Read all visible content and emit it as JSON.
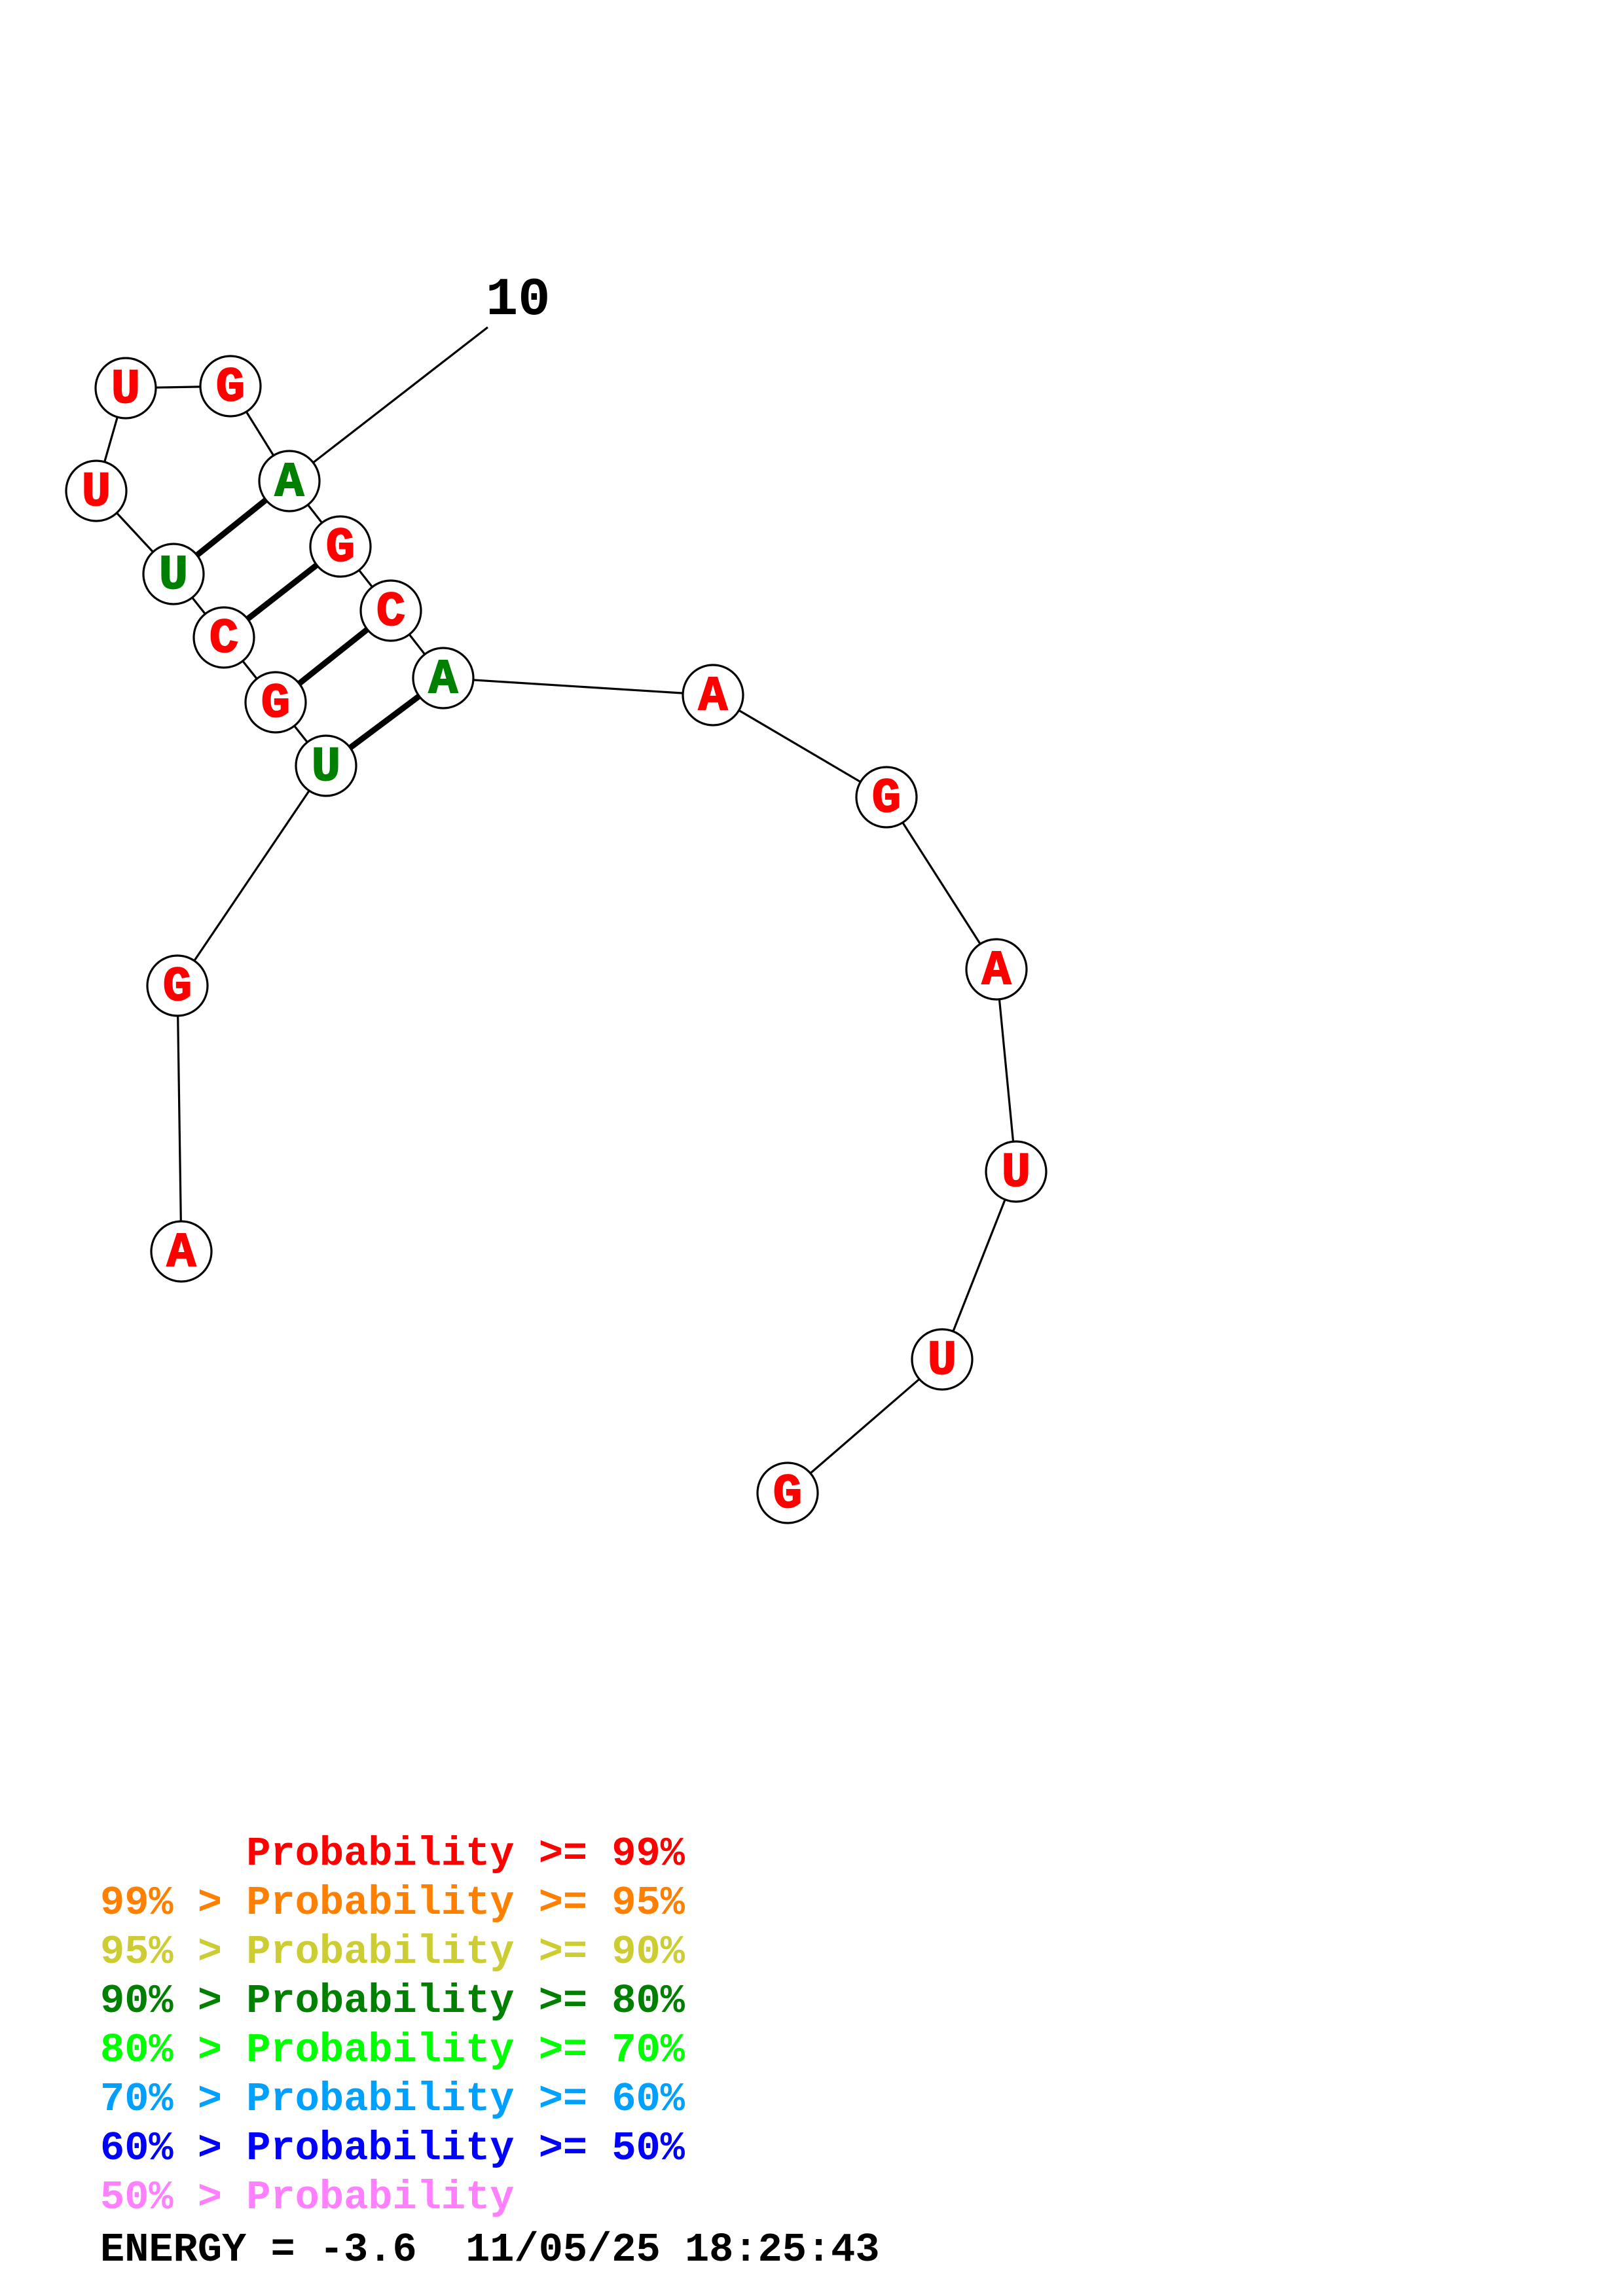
{
  "nucleotides": [
    {
      "index": 1,
      "base": "A",
      "color": "#ff0000"
    },
    {
      "index": 2,
      "base": "G",
      "color": "#ff0000"
    },
    {
      "index": 3,
      "base": "U",
      "color": "#008000"
    },
    {
      "index": 4,
      "base": "G",
      "color": "#ff0000"
    },
    {
      "index": 5,
      "base": "C",
      "color": "#ff0000"
    },
    {
      "index": 6,
      "base": "U",
      "color": "#008000"
    },
    {
      "index": 7,
      "base": "U",
      "color": "#ff0000"
    },
    {
      "index": 8,
      "base": "U",
      "color": "#ff0000"
    },
    {
      "index": 9,
      "base": "G",
      "color": "#ff0000"
    },
    {
      "index": 10,
      "base": "A",
      "color": "#008000"
    },
    {
      "index": 11,
      "base": "G",
      "color": "#ff0000"
    },
    {
      "index": 12,
      "base": "C",
      "color": "#ff0000"
    },
    {
      "index": 13,
      "base": "A",
      "color": "#008000"
    },
    {
      "index": 14,
      "base": "A",
      "color": "#ff0000"
    },
    {
      "index": 15,
      "base": "G",
      "color": "#ff0000"
    },
    {
      "index": 16,
      "base": "A",
      "color": "#ff0000"
    },
    {
      "index": 17,
      "base": "U",
      "color": "#ff0000"
    },
    {
      "index": 18,
      "base": "U",
      "color": "#ff0000"
    },
    {
      "index": 19,
      "base": "G",
      "color": "#ff0000"
    }
  ],
  "base_pairs": [
    [
      3,
      13
    ],
    [
      4,
      12
    ],
    [
      5,
      11
    ],
    [
      6,
      10
    ]
  ],
  "position_label": {
    "text": "10",
    "nucleotide": 10
  },
  "legend": [
    {
      "prefix": "      ",
      "text": "Probability >= 99%",
      "color": "#ff0000"
    },
    {
      "prefix": "99% > ",
      "text": "Probability >= 95%",
      "color": "#ff8000"
    },
    {
      "prefix": "95% > ",
      "text": "Probability >= 90%",
      "color": "#cccc33"
    },
    {
      "prefix": "90% > ",
      "text": "Probability >= 80%",
      "color": "#008000"
    },
    {
      "prefix": "80% > ",
      "text": "Probability >= 70%",
      "color": "#00ff00"
    },
    {
      "prefix": "70% > ",
      "text": "Probability >= 60%",
      "color": "#00a0ff"
    },
    {
      "prefix": "60% > ",
      "text": "Probability >= 50%",
      "color": "#0000ff"
    },
    {
      "prefix": "50% > ",
      "text": "Probability",
      "color": "#ff80ff"
    }
  ],
  "energy": {
    "text": "ENERGY = -3.6  11/05/25 18:25:43"
  }
}
